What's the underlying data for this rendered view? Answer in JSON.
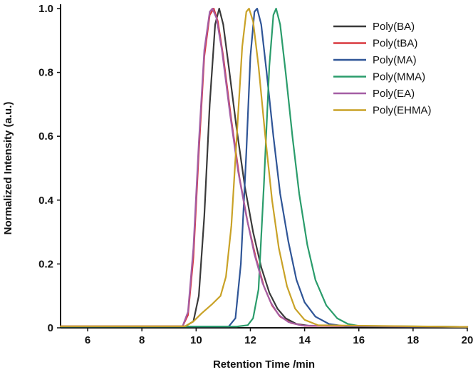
{
  "chart_data": {
    "type": "line",
    "title": "",
    "xlabel": "Retention Time /min",
    "ylabel": "Normalized Intensity (a.u.)",
    "xlim": [
      5,
      20
    ],
    "ylim": [
      0,
      1.0
    ],
    "x_ticks": [
      6,
      8,
      10,
      12,
      14,
      16,
      18,
      20
    ],
    "y_ticks": [
      "0",
      "0.2",
      "0.4",
      "0.6",
      "0.8",
      "1.0"
    ],
    "grid": false,
    "legend_position": "top-right",
    "series": [
      {
        "name": "Poly(BA)",
        "color": "#3a3a3a",
        "points": [
          [
            5,
            0.005
          ],
          [
            9.6,
            0.005
          ],
          [
            9.9,
            0.02
          ],
          [
            10.1,
            0.1
          ],
          [
            10.3,
            0.35
          ],
          [
            10.5,
            0.7
          ],
          [
            10.7,
            0.95
          ],
          [
            10.85,
            1.0
          ],
          [
            11.0,
            0.95
          ],
          [
            11.2,
            0.82
          ],
          [
            11.5,
            0.62
          ],
          [
            11.8,
            0.44
          ],
          [
            12.1,
            0.3
          ],
          [
            12.4,
            0.19
          ],
          [
            12.7,
            0.11
          ],
          [
            13.0,
            0.06
          ],
          [
            13.3,
            0.03
          ],
          [
            13.7,
            0.012
          ],
          [
            14.2,
            0.006
          ],
          [
            20,
            0.003
          ]
        ]
      },
      {
        "name": "Poly(tBA)",
        "color": "#d9383f",
        "points": [
          [
            5,
            0.005
          ],
          [
            9.5,
            0.005
          ],
          [
            9.7,
            0.04
          ],
          [
            9.9,
            0.22
          ],
          [
            10.1,
            0.55
          ],
          [
            10.3,
            0.85
          ],
          [
            10.5,
            0.98
          ],
          [
            10.65,
            1.0
          ],
          [
            10.8,
            0.96
          ],
          [
            11.0,
            0.85
          ],
          [
            11.3,
            0.65
          ],
          [
            11.6,
            0.47
          ],
          [
            11.9,
            0.33
          ],
          [
            12.2,
            0.22
          ],
          [
            12.5,
            0.13
          ],
          [
            12.8,
            0.07
          ],
          [
            13.1,
            0.035
          ],
          [
            13.5,
            0.015
          ],
          [
            14.0,
            0.006
          ],
          [
            20,
            0.003
          ]
        ]
      },
      {
        "name": "Poly(MA)",
        "color": "#2f5597",
        "points": [
          [
            5,
            0.004
          ],
          [
            11.2,
            0.004
          ],
          [
            11.45,
            0.03
          ],
          [
            11.65,
            0.2
          ],
          [
            11.85,
            0.55
          ],
          [
            12.0,
            0.85
          ],
          [
            12.15,
            0.99
          ],
          [
            12.25,
            1.0
          ],
          [
            12.4,
            0.95
          ],
          [
            12.6,
            0.8
          ],
          [
            12.85,
            0.6
          ],
          [
            13.1,
            0.42
          ],
          [
            13.4,
            0.27
          ],
          [
            13.7,
            0.15
          ],
          [
            14.0,
            0.08
          ],
          [
            14.4,
            0.035
          ],
          [
            14.9,
            0.012
          ],
          [
            15.5,
            0.005
          ],
          [
            20,
            0.003
          ]
        ]
      },
      {
        "name": "Poly(MMA)",
        "color": "#2a9c6b",
        "points": [
          [
            5,
            0.004
          ],
          [
            11.5,
            0.004
          ],
          [
            11.9,
            0.008
          ],
          [
            12.1,
            0.03
          ],
          [
            12.3,
            0.12
          ],
          [
            12.5,
            0.45
          ],
          [
            12.7,
            0.82
          ],
          [
            12.85,
            0.98
          ],
          [
            12.95,
            1.0
          ],
          [
            13.1,
            0.95
          ],
          [
            13.3,
            0.8
          ],
          [
            13.55,
            0.6
          ],
          [
            13.8,
            0.42
          ],
          [
            14.1,
            0.26
          ],
          [
            14.4,
            0.15
          ],
          [
            14.8,
            0.07
          ],
          [
            15.2,
            0.03
          ],
          [
            15.6,
            0.012
          ],
          [
            16.0,
            0.006
          ],
          [
            20,
            0.003
          ]
        ]
      },
      {
        "name": "Poly(EA)",
        "color": "#a45ea4",
        "points": [
          [
            5,
            0.005
          ],
          [
            9.5,
            0.005
          ],
          [
            9.7,
            0.05
          ],
          [
            9.9,
            0.25
          ],
          [
            10.1,
            0.58
          ],
          [
            10.3,
            0.87
          ],
          [
            10.5,
            0.99
          ],
          [
            10.6,
            1.0
          ],
          [
            10.75,
            0.97
          ],
          [
            10.95,
            0.87
          ],
          [
            11.25,
            0.67
          ],
          [
            11.55,
            0.49
          ],
          [
            11.85,
            0.35
          ],
          [
            12.15,
            0.23
          ],
          [
            12.45,
            0.14
          ],
          [
            12.75,
            0.08
          ],
          [
            13.05,
            0.04
          ],
          [
            13.4,
            0.018
          ],
          [
            13.9,
            0.007
          ],
          [
            20,
            0.003
          ]
        ]
      },
      {
        "name": "Poly(EHMA)",
        "color": "#c9a227",
        "points": [
          [
            5,
            0.005
          ],
          [
            9.6,
            0.005
          ],
          [
            9.9,
            0.02
          ],
          [
            10.2,
            0.045
          ],
          [
            10.6,
            0.075
          ],
          [
            10.9,
            0.1
          ],
          [
            11.1,
            0.16
          ],
          [
            11.3,
            0.32
          ],
          [
            11.5,
            0.6
          ],
          [
            11.7,
            0.88
          ],
          [
            11.85,
            0.99
          ],
          [
            11.95,
            1.0
          ],
          [
            12.1,
            0.96
          ],
          [
            12.3,
            0.82
          ],
          [
            12.55,
            0.6
          ],
          [
            12.8,
            0.4
          ],
          [
            13.05,
            0.25
          ],
          [
            13.35,
            0.13
          ],
          [
            13.65,
            0.06
          ],
          [
            14.0,
            0.025
          ],
          [
            14.5,
            0.008
          ],
          [
            20,
            0.003
          ]
        ]
      }
    ]
  }
}
